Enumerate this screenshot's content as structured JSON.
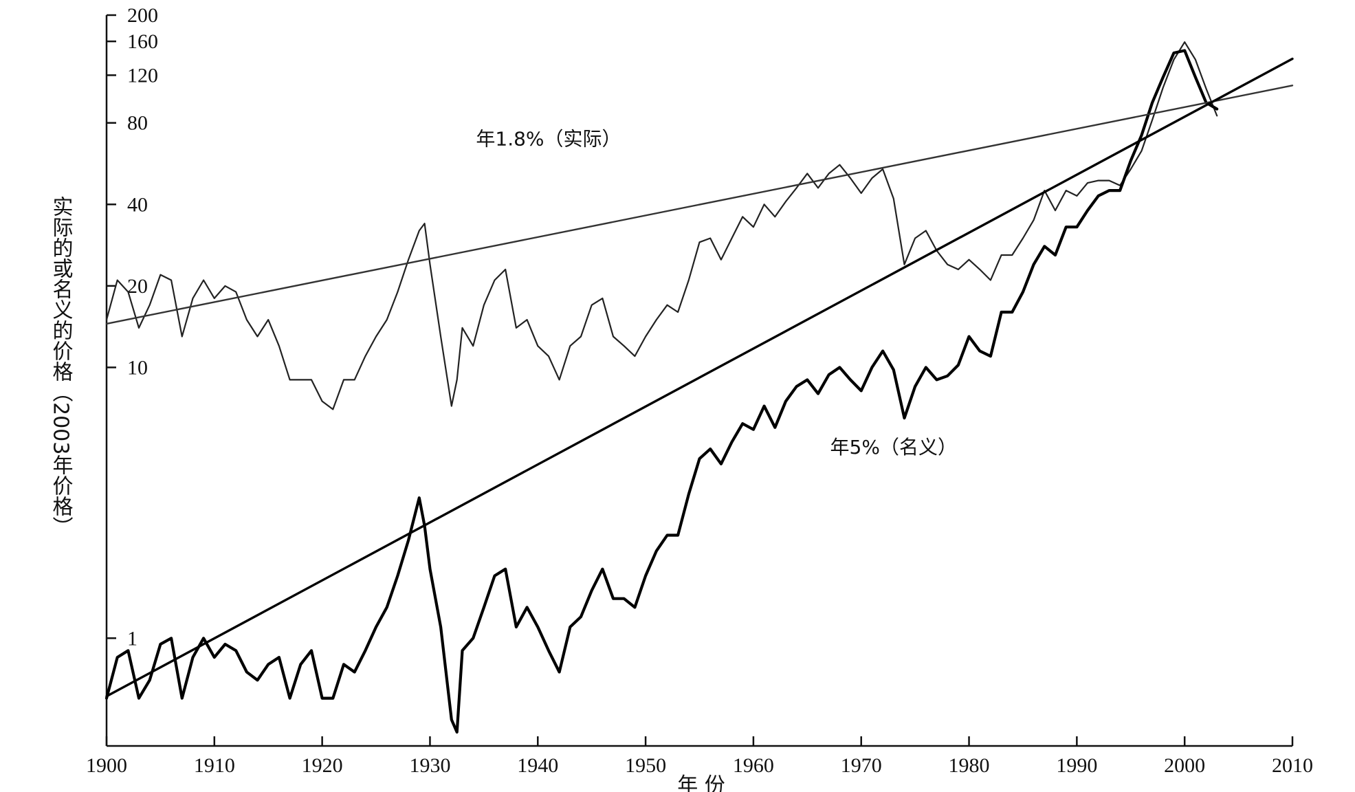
{
  "chart_data": {
    "type": "line",
    "title": "",
    "xlabel": "年 份",
    "ylabel": "实际的或名义的价格（2003年价格）",
    "xlim": [
      1900,
      2010
    ],
    "ylim": [
      0.4,
      200
    ],
    "y_scale": "log",
    "x_ticks": [
      1900,
      1910,
      1920,
      1930,
      1940,
      1950,
      1960,
      1970,
      1980,
      1990,
      2000,
      2010
    ],
    "y_ticks": [
      1,
      10,
      20,
      40,
      80,
      120,
      160,
      200
    ],
    "grid": false,
    "annotations": [
      {
        "text": "年1.8%（实际）",
        "x": 1941,
        "y": 66
      },
      {
        "text": "年5%（名义）",
        "x": 1973,
        "y": 4.8
      }
    ],
    "series": [
      {
        "style": "thin",
        "x": [
          1900,
          1901,
          1902,
          1903,
          1904,
          1905,
          1906,
          1907,
          1908,
          1909,
          1910,
          1911,
          1912,
          1913,
          1914,
          1915,
          1916,
          1917,
          1918,
          1919,
          1920,
          1921,
          1922,
          1923,
          1924,
          1925,
          1926,
          1927,
          1928,
          1929,
          1929.5,
          1930,
          1931,
          1932,
          1932.5,
          1933,
          1934,
          1935,
          1936,
          1937,
          1938,
          1939,
          1940,
          1941,
          1942,
          1943,
          1944,
          1945,
          1946,
          1947,
          1948,
          1949,
          1950,
          1951,
          1952,
          1953,
          1954,
          1955,
          1956,
          1957,
          1958,
          1959,
          1960,
          1961,
          1962,
          1963,
          1964,
          1965,
          1966,
          1967,
          1968,
          1969,
          1970,
          1971,
          1972,
          1973,
          1974,
          1975,
          1976,
          1977,
          1978,
          1979,
          1980,
          1981,
          1982,
          1983,
          1984,
          1985,
          1986,
          1987,
          1988,
          1989,
          1990,
          1991,
          1992,
          1993,
          1994,
          1995,
          1996,
          1997,
          1998,
          1999,
          2000,
          2001,
          2002,
          2003
        ],
        "values": [
          15,
          21,
          19,
          14,
          17,
          22,
          21,
          13,
          18,
          21,
          18,
          20,
          19,
          15,
          13,
          15,
          12,
          9,
          9,
          9,
          7.5,
          7,
          9,
          9,
          11,
          13,
          15,
          19,
          25,
          32,
          34,
          24,
          13,
          7.2,
          9,
          14,
          12,
          17,
          21,
          23,
          14,
          15,
          12,
          11,
          9,
          12,
          13,
          17,
          18,
          13,
          12,
          11,
          13,
          15,
          17,
          16,
          21,
          29,
          30,
          25,
          30,
          36,
          33,
          40,
          36,
          41,
          46,
          52,
          46,
          52,
          56,
          50,
          44,
          50,
          54,
          42,
          24,
          30,
          32,
          27,
          24,
          23,
          25,
          23,
          21,
          26,
          26,
          30,
          35,
          45,
          38,
          45,
          43,
          48,
          49,
          49,
          47,
          54,
          63,
          82,
          108,
          137,
          159,
          137,
          107,
          85
        ]
      },
      {
        "style": "thick",
        "x": [
          1900,
          1901,
          1902,
          1903,
          1904,
          1905,
          1906,
          1907,
          1908,
          1909,
          1910,
          1911,
          1912,
          1913,
          1914,
          1915,
          1916,
          1917,
          1918,
          1919,
          1920,
          1921,
          1922,
          1923,
          1924,
          1925,
          1926,
          1927,
          1928,
          1929,
          1929.5,
          1930,
          1931,
          1932,
          1932.5,
          1933,
          1934,
          1935,
          1936,
          1937,
          1938,
          1939,
          1940,
          1941,
          1942,
          1943,
          1944,
          1945,
          1946,
          1947,
          1948,
          1949,
          1950,
          1951,
          1952,
          1953,
          1954,
          1955,
          1956,
          1957,
          1958,
          1959,
          1960,
          1961,
          1962,
          1963,
          1964,
          1965,
          1966,
          1967,
          1968,
          1969,
          1970,
          1971,
          1972,
          1973,
          1974,
          1975,
          1976,
          1977,
          1978,
          1979,
          1980,
          1981,
          1982,
          1983,
          1984,
          1985,
          1986,
          1987,
          1988,
          1989,
          1990,
          1991,
          1992,
          1993,
          1994,
          1995,
          1996,
          1997,
          1998,
          1999,
          2000,
          2001,
          2002,
          2003
        ],
        "values": [
          0.6,
          0.85,
          0.9,
          0.6,
          0.7,
          0.95,
          1.0,
          0.6,
          0.85,
          1.0,
          0.85,
          0.95,
          0.9,
          0.75,
          0.7,
          0.8,
          0.85,
          0.6,
          0.8,
          0.9,
          0.6,
          0.6,
          0.8,
          0.75,
          0.9,
          1.1,
          1.3,
          1.7,
          2.3,
          3.3,
          2.6,
          1.8,
          1.1,
          0.5,
          0.45,
          0.9,
          1.0,
          1.3,
          1.7,
          1.8,
          1.1,
          1.3,
          1.1,
          0.9,
          0.75,
          1.1,
          1.2,
          1.5,
          1.8,
          1.4,
          1.4,
          1.3,
          1.7,
          2.1,
          2.4,
          2.4,
          3.4,
          4.6,
          5.0,
          4.4,
          5.3,
          6.2,
          5.9,
          7.2,
          6.0,
          7.5,
          8.5,
          9.0,
          8.0,
          9.4,
          10.0,
          9.0,
          8.2,
          10.0,
          11.5,
          9.8,
          6.5,
          8.5,
          10.0,
          9.0,
          9.3,
          10.2,
          13.0,
          11.5,
          11.0,
          16.0,
          16.0,
          19.0,
          24.0,
          28.0,
          26.0,
          33.0,
          33.0,
          38.0,
          43.0,
          45.0,
          45.0,
          58.0,
          72.0,
          95.0,
          118.0,
          145.0,
          148.0,
          118.0,
          95.0,
          90.0
        ]
      },
      {
        "style": "trend-thin",
        "x": [
          1900,
          2010
        ],
        "values": [
          14.5,
          110
        ]
      },
      {
        "style": "trend-thick",
        "x": [
          1900,
          2010
        ],
        "values": [
          0.61,
          138
        ]
      }
    ]
  }
}
